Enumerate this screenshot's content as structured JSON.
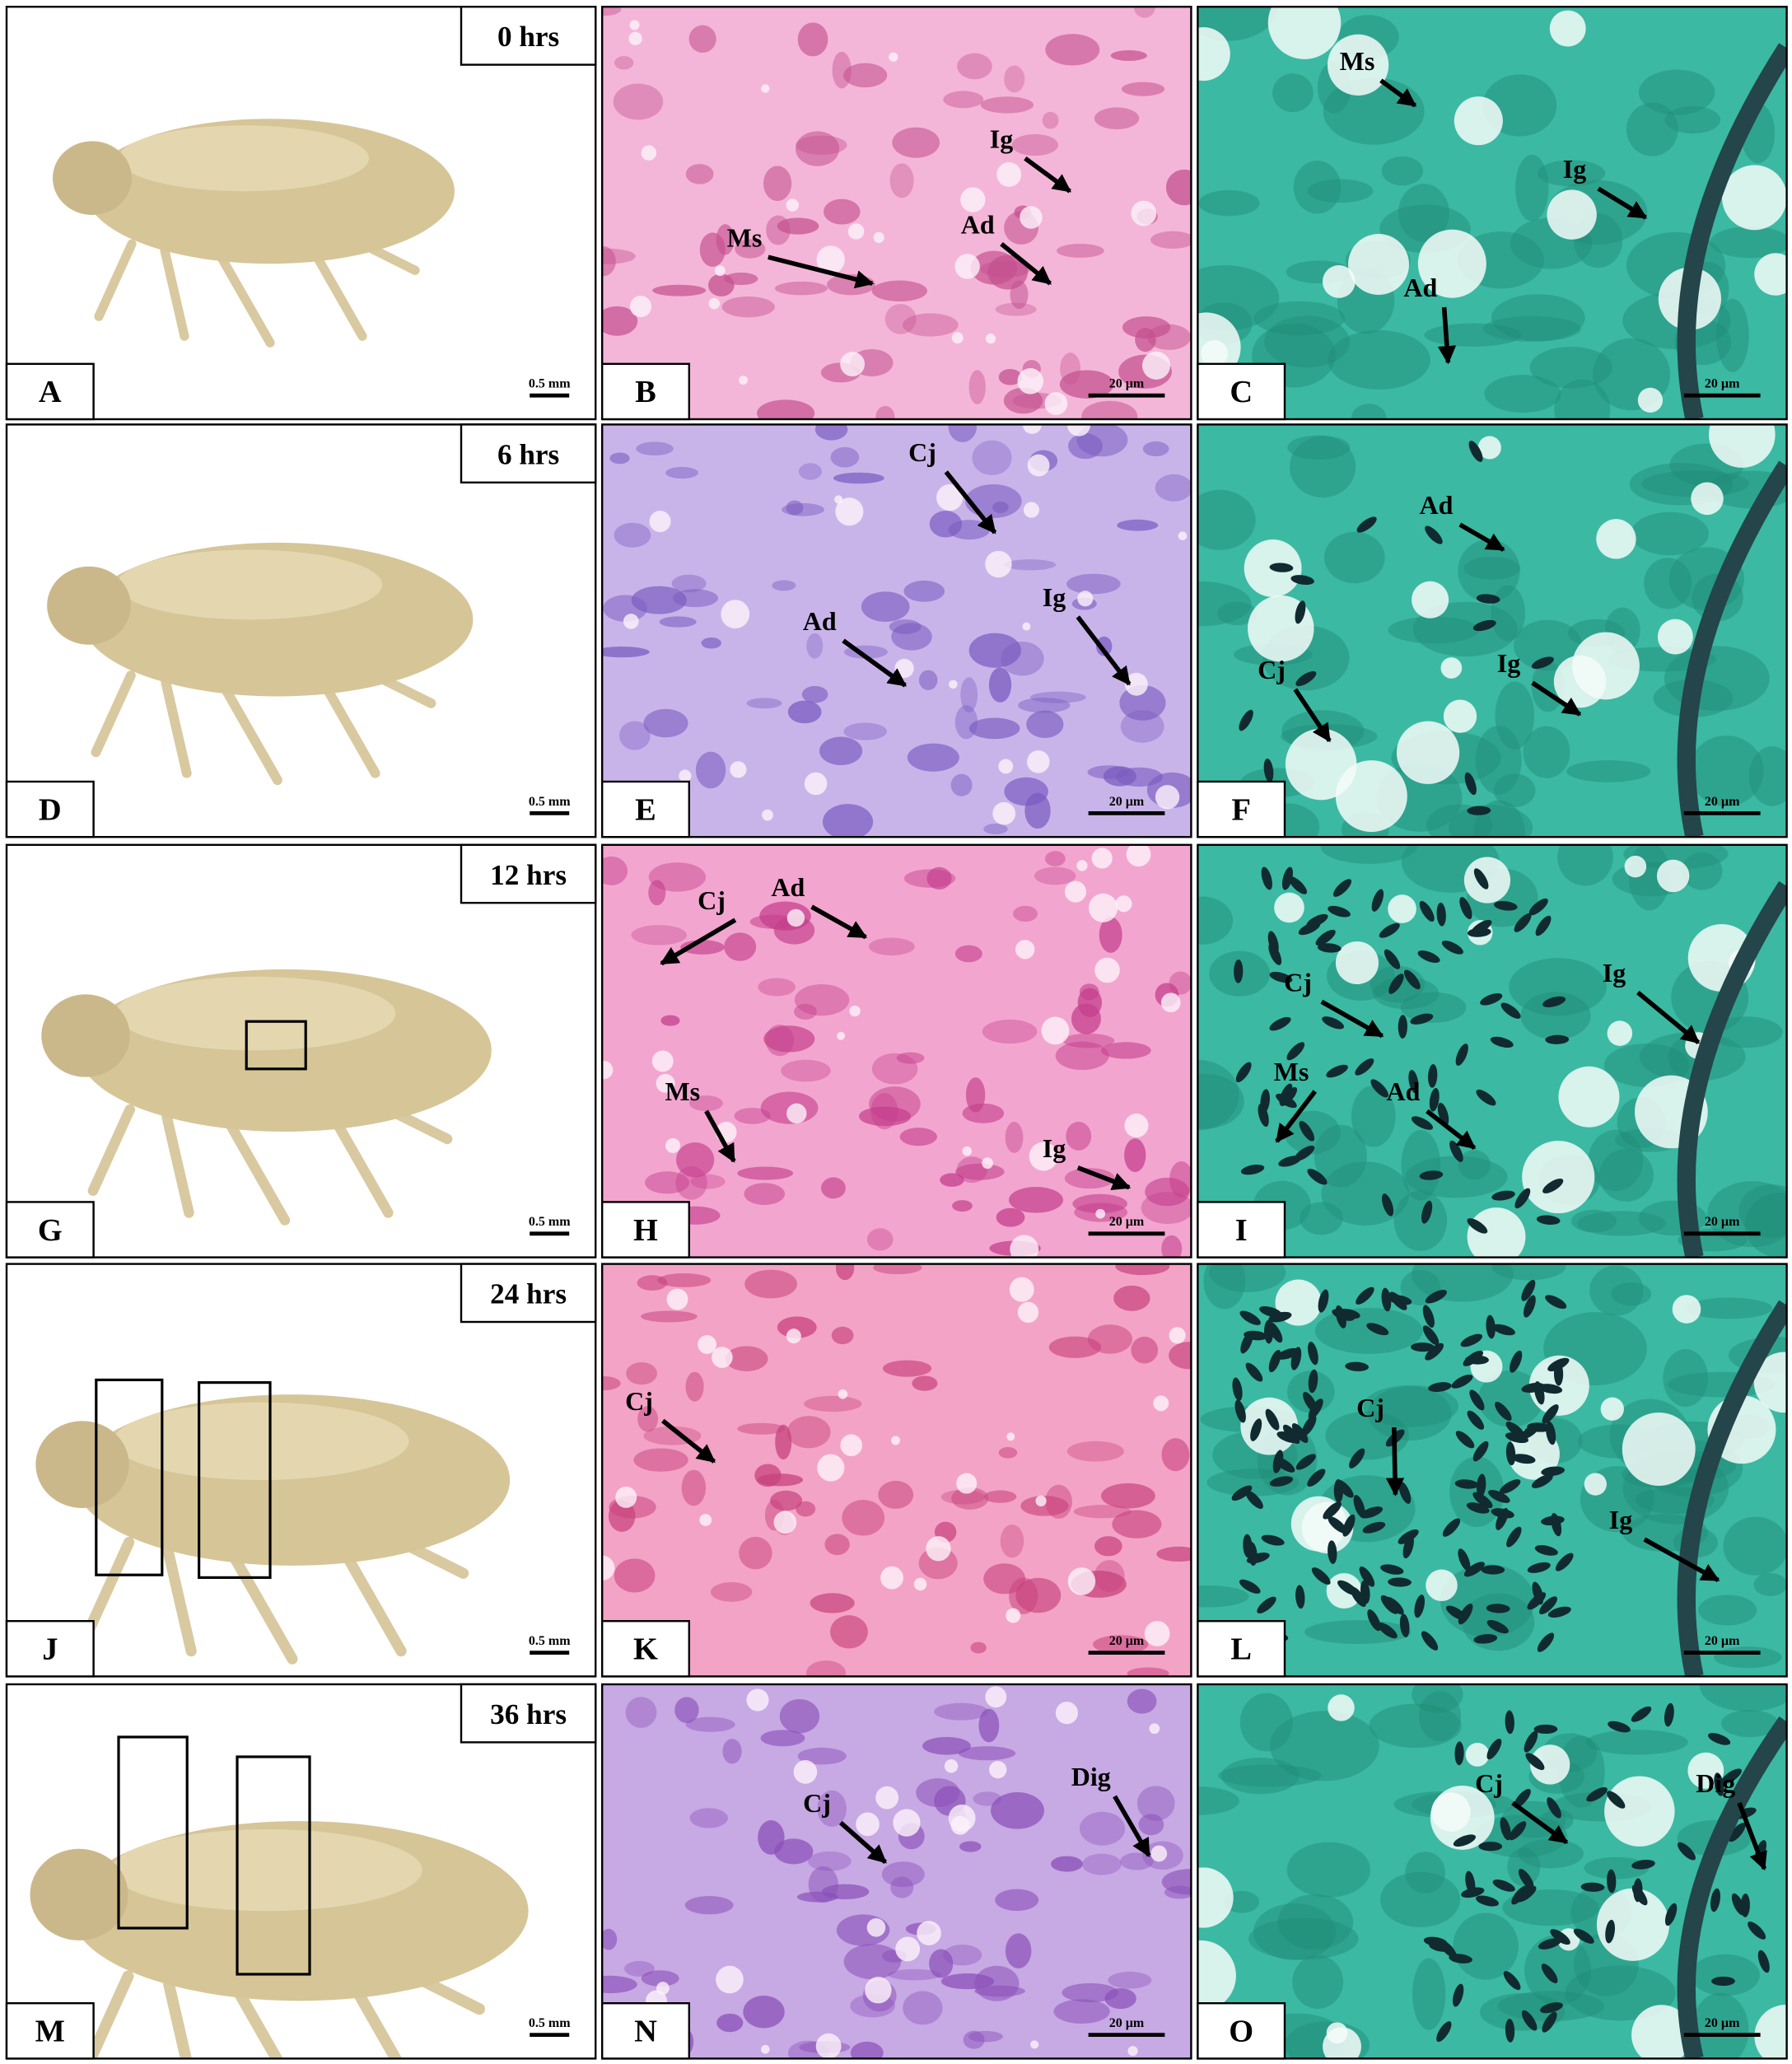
{
  "panels": [
    {
      "letter": "A",
      "time": "0 hrs",
      "scale": "0.5 mm"
    },
    {
      "letter": "B",
      "scale": "20 µm",
      "labels": [
        "Ig",
        "Ad",
        "Ms"
      ]
    },
    {
      "letter": "C",
      "scale": "20 µm",
      "labels": [
        "Ms",
        "Ig",
        "Ad"
      ]
    },
    {
      "letter": "D",
      "time": "6 hrs",
      "scale": "0.5 mm"
    },
    {
      "letter": "E",
      "scale": "20 µm",
      "labels": [
        "Cj",
        "Ad",
        "Ig"
      ]
    },
    {
      "letter": "F",
      "scale": "20 µm",
      "labels": [
        "Ad",
        "Cj",
        "Ig"
      ]
    },
    {
      "letter": "G",
      "time": "12 hrs",
      "scale": "0.5 mm"
    },
    {
      "letter": "H",
      "scale": "20 µm",
      "labels": [
        "Cj",
        "Ad",
        "Ms",
        "Ig"
      ]
    },
    {
      "letter": "I",
      "scale": "20 µm",
      "labels": [
        "Cj",
        "Ms",
        "Ad",
        "Ig"
      ]
    },
    {
      "letter": "J",
      "time": "24 hrs",
      "scale": "0.5 mm"
    },
    {
      "letter": "K",
      "scale": "20 µm",
      "labels": [
        "Cj"
      ]
    },
    {
      "letter": "L",
      "scale": "20 µm",
      "labels": [
        "Cj",
        "Ig"
      ]
    },
    {
      "letter": "M",
      "time": "36 hrs",
      "scale": "0.5 mm"
    },
    {
      "letter": "N",
      "scale": "20 µm",
      "labels": [
        "Cj",
        "Dig"
      ]
    },
    {
      "letter": "O",
      "scale": "20 µm",
      "labels": [
        "Cj",
        "Dig"
      ]
    }
  ]
}
